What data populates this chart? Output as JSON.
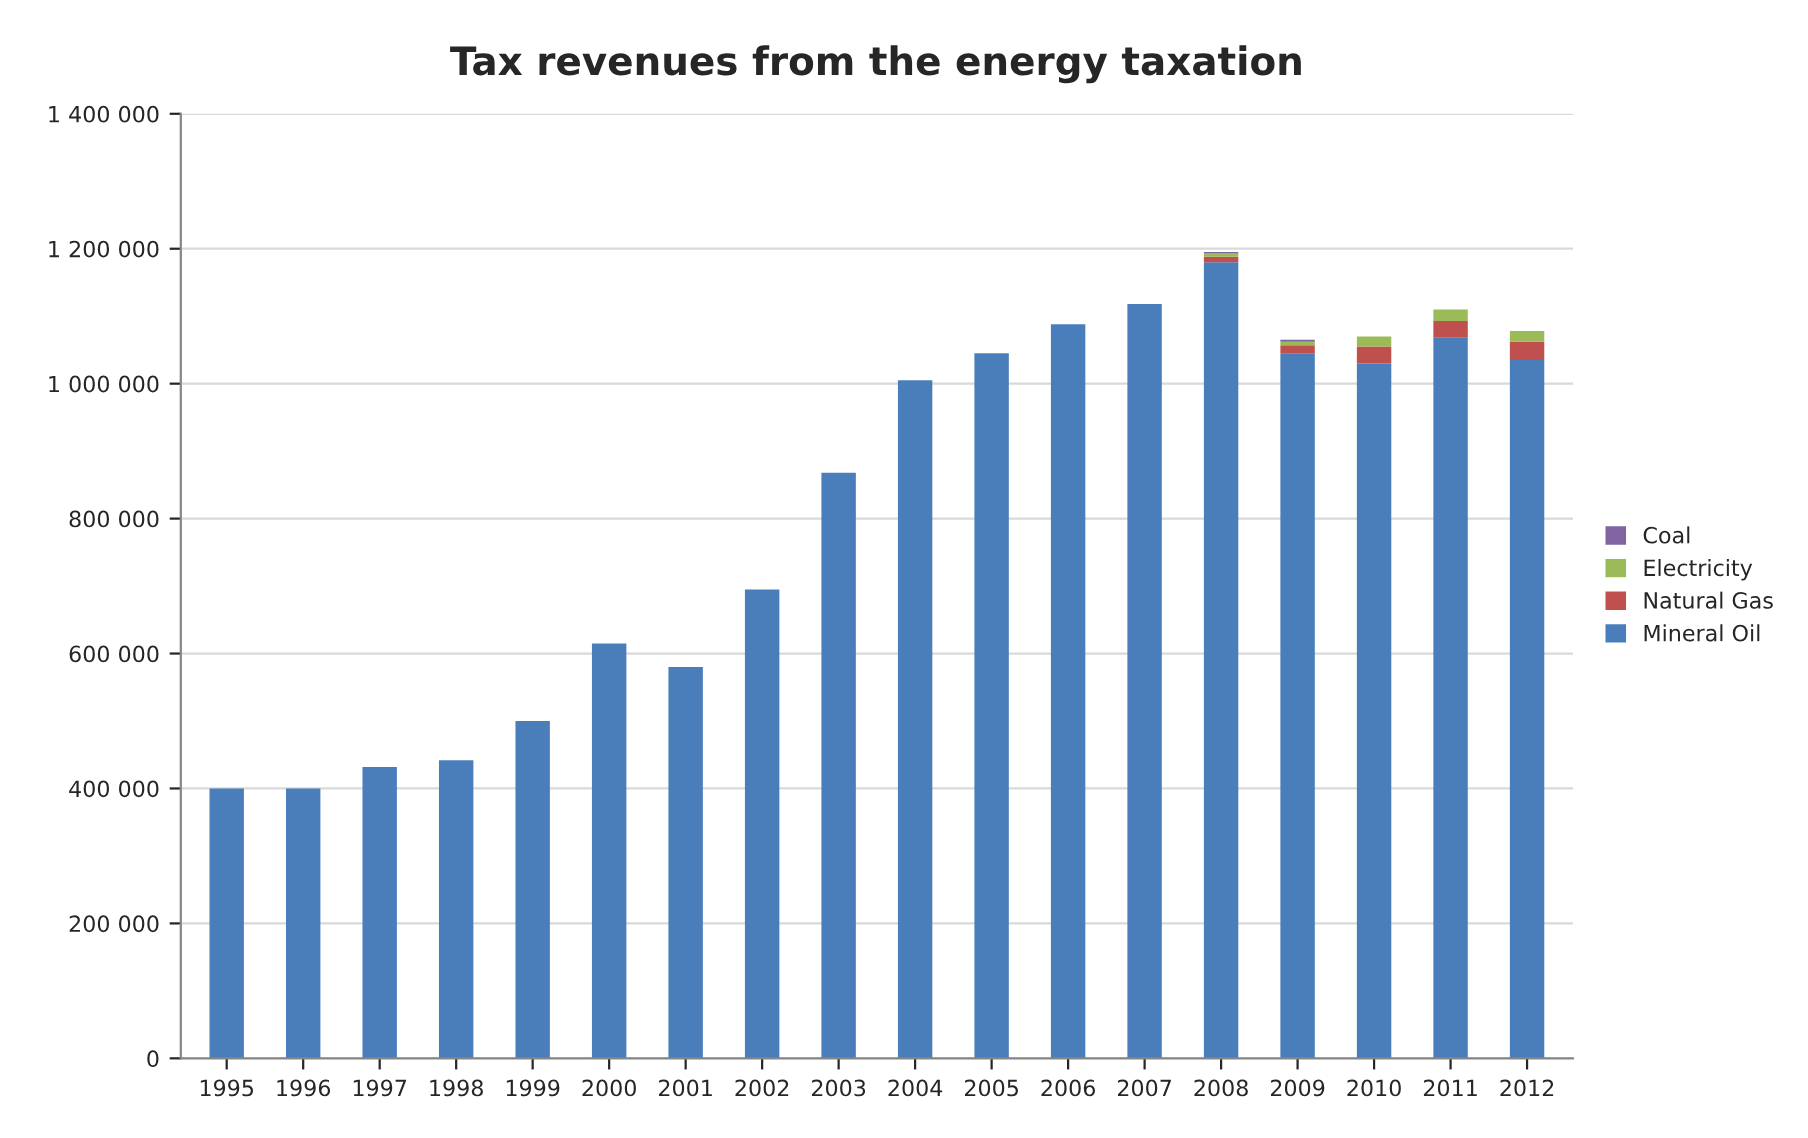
{
  "chart_data": {
    "type": "bar",
    "title": "Tax revenues from the energy taxation",
    "stacked": true,
    "categories": [
      "1995",
      "1996",
      "1997",
      "1998",
      "1999",
      "2000",
      "2001",
      "2002",
      "2003",
      "2004",
      "2005",
      "2006",
      "2007",
      "2008",
      "2009",
      "2010",
      "2011",
      "2012"
    ],
    "series": [
      {
        "name": "Mineral Oil",
        "color": "#4a7ebb",
        "values": [
          400000,
          400000,
          432000,
          442000,
          500000,
          615000,
          580000,
          695000,
          868000,
          1005000,
          1045000,
          1088000,
          1118000,
          1180000,
          1045000,
          1030000,
          1068000,
          1035000
        ]
      },
      {
        "name": "Natural Gas",
        "color": "#c0504d",
        "values": [
          null,
          null,
          null,
          null,
          null,
          null,
          null,
          null,
          null,
          null,
          null,
          null,
          null,
          8000,
          12000,
          25000,
          25000,
          27000
        ]
      },
      {
        "name": "Electricity",
        "color": "#9bbb59",
        "values": [
          null,
          null,
          null,
          null,
          null,
          null,
          null,
          null,
          null,
          null,
          null,
          null,
          null,
          5000,
          5000,
          15000,
          17000,
          16000
        ]
      },
      {
        "name": "Coal",
        "color": "#8064a2",
        "values": [
          null,
          null,
          null,
          null,
          null,
          null,
          null,
          null,
          null,
          null,
          null,
          null,
          null,
          2000,
          3000,
          null,
          null,
          null
        ]
      }
    ],
    "ylim": [
      0,
      1400000
    ],
    "yticks": [
      0,
      {
        "value": 200000,
        "label": "200 000"
      },
      {
        "value": 400000,
        "label": "400 000"
      },
      {
        "value": 600000,
        "label": "600 000"
      },
      {
        "value": 800000,
        "label": "800 000"
      },
      {
        "value": 1000000,
        "label": "1 000 000"
      },
      {
        "value": 1200000,
        "label": "1 200 000"
      },
      {
        "value": 1400000,
        "label": "1 400 000"
      }
    ],
    "grid": "y",
    "legend": "right"
  }
}
